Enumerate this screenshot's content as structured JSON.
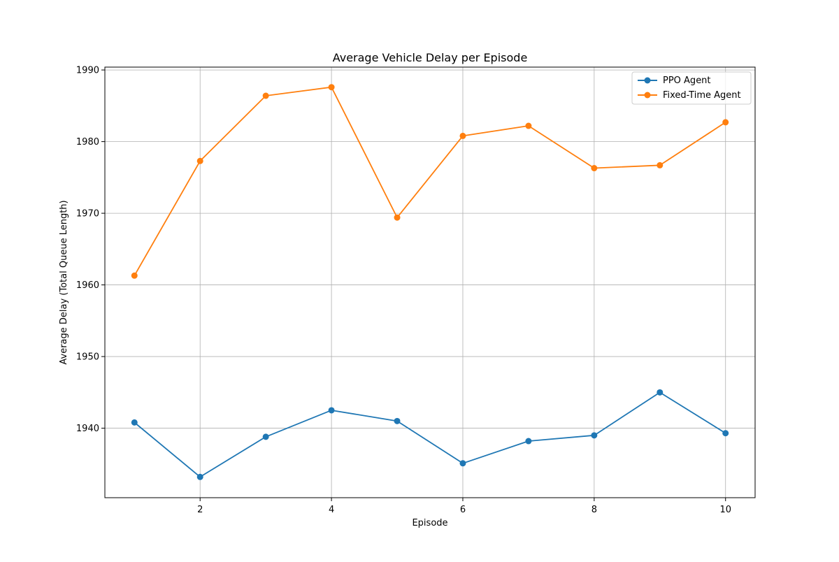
{
  "chart_data": {
    "type": "line",
    "title": "Average Vehicle Delay per Episode",
    "xlabel": "Episode",
    "ylabel": "Average Delay (Total Queue Length)",
    "x": [
      1,
      2,
      3,
      4,
      5,
      6,
      7,
      8,
      9,
      10
    ],
    "series": [
      {
        "name": "PPO Agent",
        "color": "#1f77b4",
        "values": [
          1940.8,
          1933.2,
          1938.8,
          1942.5,
          1941.0,
          1935.1,
          1938.2,
          1939.0,
          1945.0,
          1939.3
        ]
      },
      {
        "name": "Fixed-Time Agent",
        "color": "#ff7f0e",
        "values": [
          1961.3,
          1977.3,
          1986.4,
          1987.6,
          1969.4,
          1980.8,
          1982.2,
          1976.3,
          1976.7,
          1982.7
        ]
      }
    ],
    "xlim": [
      0.55,
      10.45
    ],
    "ylim": [
      1930.3,
      1990.4
    ],
    "xticks": [
      2,
      4,
      6,
      8,
      10
    ],
    "yticks": [
      1940,
      1950,
      1960,
      1970,
      1980,
      1990
    ],
    "grid": true,
    "legend_position": "top-right"
  }
}
